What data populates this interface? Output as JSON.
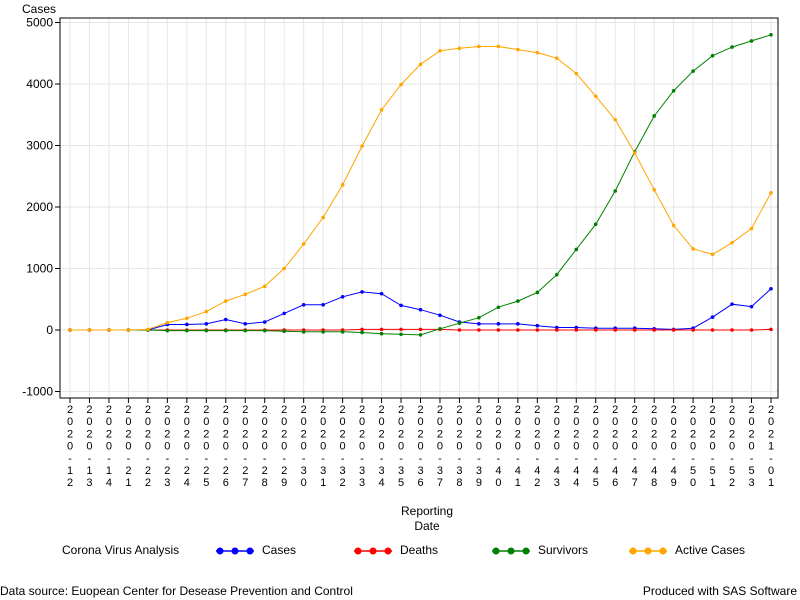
{
  "chart_data": {
    "type": "line",
    "ylabel": "Cases",
    "xlabel_line1": "Reporting",
    "xlabel_line2": "Date",
    "ylim": [
      -1000,
      5000
    ],
    "yticks": [
      -1000,
      0,
      1000,
      2000,
      3000,
      4000,
      5000
    ],
    "grid": true,
    "legend_position": "bottom",
    "categories": [
      "2020-12",
      "2020-13",
      "2020-14",
      "2020-21",
      "2020-22",
      "2020-23",
      "2020-24",
      "2020-25",
      "2020-26",
      "2020-27",
      "2020-28",
      "2020-29",
      "2020-30",
      "2020-31",
      "2020-32",
      "2020-33",
      "2020-34",
      "2020-35",
      "2020-36",
      "2020-37",
      "2020-38",
      "2020-39",
      "2020-40",
      "2020-41",
      "2020-42",
      "2020-43",
      "2020-44",
      "2020-45",
      "2020-46",
      "2020-47",
      "2020-48",
      "2020-49",
      "2020-50",
      "2020-51",
      "2020-52",
      "2020-53",
      "2021-01"
    ],
    "series": [
      {
        "name": "Cases",
        "color": "#0000ff",
        "values": [
          0,
          0,
          0,
          0,
          0,
          90,
          90,
          100,
          170,
          100,
          130,
          270,
          410,
          410,
          540,
          620,
          590,
          400,
          330,
          240,
          130,
          100,
          100,
          100,
          70,
          40,
          40,
          30,
          30,
          30,
          20,
          10,
          30,
          210,
          420,
          380,
          670
        ]
      },
      {
        "name": "Deaths",
        "color": "#ff0000",
        "values": [
          0,
          0,
          0,
          0,
          0,
          0,
          0,
          0,
          0,
          0,
          0,
          0,
          0,
          0,
          0,
          10,
          10,
          10,
          10,
          10,
          0,
          0,
          0,
          0,
          0,
          0,
          0,
          0,
          0,
          0,
          0,
          0,
          0,
          0,
          0,
          0,
          10
        ]
      },
      {
        "name": "Survivors",
        "color": "#008000",
        "values": [
          0,
          0,
          0,
          0,
          0,
          -10,
          -10,
          -10,
          -10,
          -10,
          -10,
          -20,
          -30,
          -30,
          -30,
          -40,
          -60,
          -70,
          -80,
          20,
          110,
          200,
          370,
          470,
          610,
          900,
          1310,
          1720,
          2260,
          2900,
          3480,
          3890,
          4210,
          4460,
          4600,
          4700,
          4800
        ]
      },
      {
        "name": "Active Cases",
        "color": "#ffa500",
        "values": [
          0,
          0,
          0,
          0,
          10,
          120,
          190,
          300,
          470,
          580,
          710,
          1000,
          1400,
          1830,
          2360,
          2990,
          3580,
          3990,
          4320,
          4540,
          4580,
          4610,
          4610,
          4560,
          4510,
          4420,
          4170,
          3800,
          3420,
          2880,
          2280,
          1700,
          1320,
          1230,
          1420,
          1650,
          2230
        ]
      }
    ]
  },
  "legend": {
    "title": "Corona Virus Analysis",
    "items": [
      "Cases",
      "Deaths",
      "Survivors",
      "Active Cases"
    ],
    "colors": [
      "#0000ff",
      "#ff0000",
      "#008000",
      "#ffa500"
    ]
  },
  "footnotes": {
    "left": "Data source: Euopean Center for Desease Prevention and Control",
    "right": "Produced with SAS Software"
  }
}
